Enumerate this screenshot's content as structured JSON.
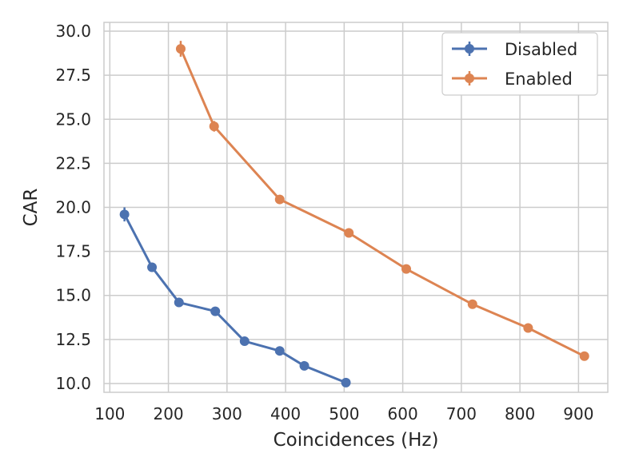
{
  "chart_data": {
    "type": "line",
    "xlabel": "Coincidences (Hz)",
    "ylabel": "CAR",
    "xlim": [
      90,
      950
    ],
    "ylim": [
      9.5,
      30.5
    ],
    "xticks": [
      100,
      200,
      300,
      400,
      500,
      600,
      700,
      800,
      900
    ],
    "yticks": [
      10.0,
      12.5,
      15.0,
      17.5,
      20.0,
      22.5,
      25.0,
      27.5,
      30.0
    ],
    "xtick_labels": [
      "100",
      "200",
      "300",
      "400",
      "500",
      "600",
      "700",
      "800",
      "900"
    ],
    "ytick_labels": [
      "10.0",
      "12.5",
      "15.0",
      "17.5",
      "20.0",
      "22.5",
      "25.0",
      "27.5",
      "30.0"
    ],
    "grid": true,
    "legend_position": "top-right",
    "series": [
      {
        "name": "Disabled",
        "color": "#4c72b0",
        "x": [
          125,
          172,
          218,
          280,
          330,
          390,
          432,
          503
        ],
        "y": [
          19.6,
          16.6,
          14.6,
          14.1,
          12.4,
          11.85,
          11.0,
          10.05
        ],
        "yerr": [
          0.4,
          0.15,
          0.1,
          0.1,
          0.1,
          0.1,
          0.08,
          0.08
        ]
      },
      {
        "name": "Enabled",
        "color": "#dd8452",
        "x": [
          221,
          278,
          390,
          508,
          606,
          719,
          814,
          910
        ],
        "y": [
          29.0,
          24.6,
          20.45,
          18.55,
          16.5,
          14.5,
          13.15,
          11.55
        ],
        "yerr": [
          0.45,
          0.3,
          0.15,
          0.1,
          0.1,
          0.08,
          0.08,
          0.08
        ]
      }
    ]
  }
}
